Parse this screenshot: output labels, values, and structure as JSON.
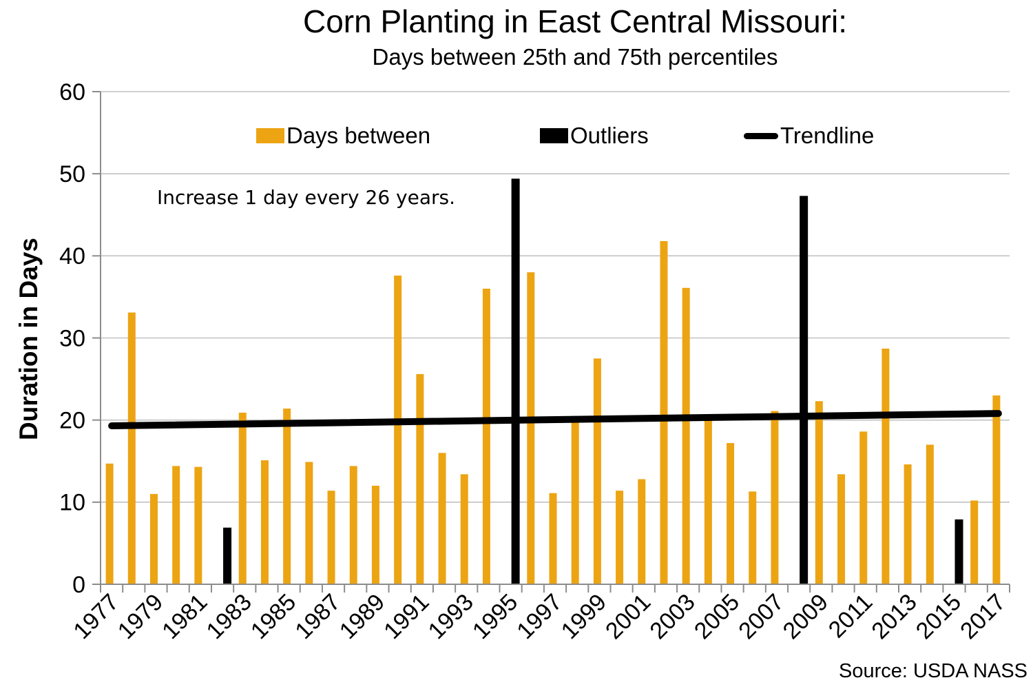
{
  "title": {
    "text": "Corn Planting in East Central Missouri:",
    "subtitle": "Days between 25th and 75th percentiles"
  },
  "annotation": {
    "text": "Increase 1 day every 26 years."
  },
  "source": {
    "text": "Source: USDA NASS"
  },
  "legend": {
    "items": [
      {
        "label": "Days between",
        "color": "#ECA413",
        "swatch": "rect"
      },
      {
        "label": "Outliers",
        "color": "#000000",
        "swatch": "rect"
      },
      {
        "label": "Trendline",
        "color": "#000000",
        "swatch": "line"
      }
    ]
  },
  "colors": {
    "bar_gold": "#ECA413",
    "bar_black": "#000000",
    "trendline": "#000000",
    "gridline": "#C1C1C1",
    "axis": "#8C8C8C",
    "text": "#000000"
  },
  "chart_data": {
    "type": "bar",
    "title": "Corn Planting in East Central Missouri:",
    "subtitle": "Days between 25th and 75th percentiles",
    "xlabel": "",
    "ylabel": "Duration in Days",
    "ylim": [
      0,
      60
    ],
    "ytick_interval": 10,
    "ytick_labels": [
      "0",
      "10",
      "20",
      "30",
      "40",
      "50",
      "60"
    ],
    "grid": "horizontal",
    "legend_position": "top",
    "x_label_every": 2,
    "categories": [
      1977,
      1978,
      1979,
      1980,
      1981,
      1982,
      1983,
      1984,
      1985,
      1986,
      1987,
      1988,
      1989,
      1990,
      1991,
      1992,
      1993,
      1994,
      1995,
      1996,
      1997,
      1998,
      1999,
      2000,
      2001,
      2002,
      2003,
      2004,
      2005,
      2006,
      2007,
      2008,
      2009,
      2010,
      2011,
      2012,
      2013,
      2014,
      2015,
      2016,
      2017
    ],
    "series": [
      {
        "name": "Days between",
        "color": "#ECA413",
        "values": [
          14.7,
          33.1,
          11.0,
          14.4,
          14.3,
          null,
          20.9,
          15.1,
          21.4,
          14.9,
          11.4,
          14.4,
          12.0,
          37.6,
          25.6,
          16.0,
          13.4,
          36.0,
          null,
          38.0,
          11.1,
          20.5,
          27.5,
          11.4,
          12.8,
          41.8,
          36.1,
          20.0,
          17.2,
          11.3,
          21.1,
          null,
          22.3,
          13.4,
          18.6,
          28.7,
          14.6,
          17.0,
          null,
          10.2,
          23.0
        ]
      },
      {
        "name": "Outliers",
        "color": "#000000",
        "values": [
          null,
          null,
          null,
          null,
          null,
          6.9,
          null,
          null,
          null,
          null,
          null,
          null,
          null,
          null,
          null,
          null,
          null,
          null,
          49.4,
          null,
          null,
          null,
          null,
          null,
          null,
          null,
          null,
          null,
          null,
          null,
          null,
          47.3,
          null,
          null,
          null,
          null,
          null,
          null,
          7.9,
          null,
          null
        ]
      }
    ],
    "trendline": {
      "name": "Trendline",
      "color": "#000000",
      "start_year": 1977,
      "start_value": 19.3,
      "end_year": 2017,
      "end_value": 20.8,
      "note": "Increase 1 day every 26 years."
    },
    "source": "Source: USDA NASS"
  }
}
